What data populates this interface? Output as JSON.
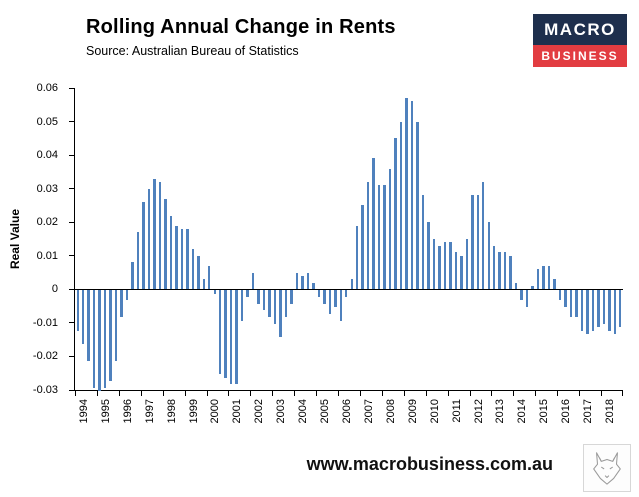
{
  "header": {
    "title": "Rolling Annual Change in Rents",
    "subtitle": "Source: Australian Bureau of Statistics",
    "logo": {
      "line1": "MACRO",
      "line2": "BUSINESS",
      "navy": "#1e2f4d",
      "red": "#e23c41"
    }
  },
  "chart_data": {
    "type": "bar",
    "title": "Rolling Annual Change in Rents",
    "xlabel": "",
    "ylabel": "Real Value",
    "ylim": [
      -0.03,
      0.06
    ],
    "y_ticks": [
      "0.06",
      "0.05",
      "0.04",
      "0.03",
      "0.02",
      "0.01",
      "0",
      "-0.01",
      "-0.02",
      "-0.03"
    ],
    "bar_color": "#4f81bd",
    "grid": false,
    "legend": "none",
    "bars_per_category": 4,
    "categories": [
      "1994",
      "1995",
      "1996",
      "1997",
      "1998",
      "1999",
      "2000",
      "2001",
      "2002",
      "2003",
      "2004",
      "2005",
      "2006",
      "2007",
      "2008",
      "2009",
      "2010",
      "2011",
      "2012",
      "2013",
      "2014",
      "2015",
      "2016",
      "2017",
      "2018"
    ],
    "values": [
      -0.012,
      -0.016,
      -0.021,
      -0.029,
      -0.03,
      -0.029,
      -0.027,
      -0.021,
      -0.008,
      -0.003,
      0.008,
      0.017,
      0.026,
      0.03,
      0.033,
      0.032,
      0.027,
      0.022,
      0.019,
      0.018,
      0.018,
      0.012,
      0.01,
      0.003,
      0.007,
      -0.001,
      -0.025,
      -0.026,
      -0.028,
      -0.028,
      -0.009,
      -0.002,
      0.005,
      -0.004,
      -0.006,
      -0.008,
      -0.01,
      -0.014,
      -0.008,
      -0.004,
      0.005,
      0.004,
      0.005,
      0.002,
      -0.002,
      -0.004,
      -0.007,
      -0.005,
      -0.009,
      -0.002,
      0.003,
      0.019,
      0.025,
      0.032,
      0.039,
      0.031,
      0.031,
      0.036,
      0.045,
      0.05,
      0.057,
      0.056,
      0.05,
      0.028,
      0.02,
      0.015,
      0.013,
      0.014,
      0.014,
      0.011,
      0.01,
      0.015,
      0.028,
      0.028,
      0.032,
      0.02,
      0.013,
      0.011,
      0.011,
      0.01,
      0.002,
      -0.003,
      -0.005,
      0.001,
      0.006,
      0.007,
      0.007,
      0.003,
      -0.003,
      -0.005,
      -0.008,
      -0.008,
      -0.012,
      -0.013,
      -0.012,
      -0.011,
      -0.01,
      -0.012,
      -0.013,
      -0.011
    ]
  },
  "footer": {
    "url": "www.macrobusiness.com.au"
  }
}
